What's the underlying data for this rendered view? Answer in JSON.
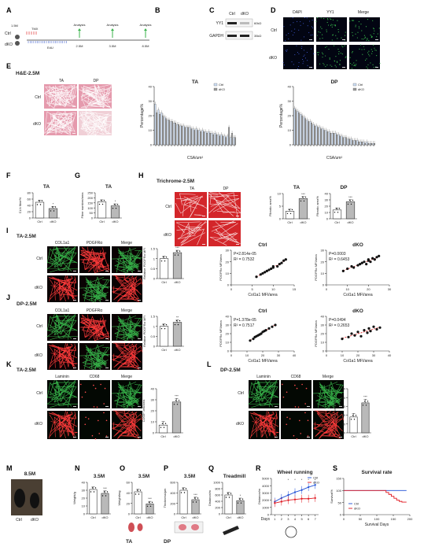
{
  "figure": {
    "panel_letters": [
      "A",
      "B",
      "C",
      "D",
      "E",
      "F",
      "G",
      "H",
      "I",
      "J",
      "K",
      "L",
      "M",
      "N",
      "O",
      "P",
      "Q",
      "R",
      "S"
    ],
    "colors": {
      "ctrl": "#1f4fd6",
      "dko": "#e0161e",
      "bar_ctrl": "#ffffff",
      "bar_dko": "#b9b9b9",
      "he_pink": "#e59aad",
      "trichrome_red": "#d3262a",
      "cd68_red": "#a31f23",
      "laminin_green": "#2aa83d",
      "green": "#37b34a",
      "dapi_blue": "#2b46c9",
      "black": "#111111"
    }
  },
  "panel_a": {
    "groups": [
      "Ctrl",
      "dKO"
    ],
    "age_label": "1.5M",
    "treatments": [
      "TMX",
      "EdU"
    ],
    "analyses": [
      "Analysis",
      "Analysis",
      "Analysis"
    ],
    "timepoints": [
      "2.5M",
      "3.5M",
      "8.5M"
    ]
  },
  "panel_c": {
    "columns": [
      "Ctrl",
      "dKO"
    ],
    "bands": [
      {
        "label": "YY1",
        "size": "60kD"
      },
      {
        "label": "GAPDH",
        "size": "35kD"
      }
    ]
  },
  "panel_d": {
    "columns": [
      "DAPI",
      "YY1",
      "Merge"
    ],
    "rows": [
      "Ctrl",
      "dKO"
    ]
  },
  "panel_e": {
    "title": "H&E-2.5M",
    "columns": [
      "TA",
      "DP"
    ],
    "rows": [
      "Ctrl",
      "dKO"
    ]
  },
  "panel_h": {
    "title": "Trichrome-2.5M",
    "columns": [
      "TA",
      "DP"
    ],
    "rows": [
      "Ctrl",
      "dKO"
    ]
  },
  "panel_i": {
    "title": "TA-2.5M",
    "columns": [
      "COL1a1",
      "PDGFRα",
      "Merge"
    ],
    "rows": [
      "Ctrl",
      "dKO"
    ]
  },
  "panel_j": {
    "title": "DP-2.5M",
    "columns": [
      "COL1a1",
      "PDGFRα",
      "Merge"
    ],
    "rows": [
      "Ctrl",
      "dKO"
    ]
  },
  "panel_k": {
    "title": "TA-2.5M",
    "columns": [
      "Laminin",
      "CD68",
      "Merge"
    ],
    "rows": [
      "Ctrl",
      "dKO"
    ]
  },
  "panel_l": {
    "title": "DP-2.5M",
    "columns": [
      "Laminin",
      "CD68",
      "Merge"
    ],
    "rows": [
      "Ctrl",
      "dKO"
    ]
  },
  "panel_m": {
    "title": "8.5M",
    "labels": [
      "Ctrl",
      "dKO"
    ]
  },
  "panel_o": {
    "image_label": "TA"
  },
  "panel_p": {
    "image_label": "DP"
  },
  "chart_data": [
    {
      "id": "B",
      "type": "bar",
      "categories": [
        "Ctrl",
        "dKO"
      ],
      "values": [
        1.0,
        0.05
      ],
      "ylabel": "YY1 expression fold",
      "ylim": [
        0,
        1.5
      ],
      "yticks": [
        0,
        0.5,
        1,
        1.5
      ],
      "sig": "***"
    },
    {
      "id": "E-TA",
      "type": "bar",
      "title": "TA",
      "xlabel": "CSA/um²",
      "ylabel": "Percentage%",
      "ylim": [
        0,
        40
      ],
      "yticks": [
        0,
        10,
        20,
        30,
        40
      ],
      "n_bins": 26,
      "series": [
        {
          "name": "Ctrl",
          "values": [
            28,
            24,
            22,
            19,
            17,
            16,
            15,
            14,
            13,
            13,
            12,
            12,
            11,
            11,
            10,
            10,
            9,
            9,
            8,
            8,
            7,
            7,
            6,
            6,
            5,
            5
          ]
        },
        {
          "name": "dKO",
          "values": [
            22,
            21,
            20,
            18,
            17,
            16,
            15,
            14,
            13,
            12,
            12,
            11,
            10,
            10,
            9,
            9,
            8,
            8,
            7,
            7,
            6,
            6,
            5,
            12,
            8,
            5
          ]
        }
      ],
      "legend": [
        "Ctrl",
        "dKO"
      ],
      "legend_position": "top-right"
    },
    {
      "id": "E-DP",
      "type": "bar",
      "title": "DP",
      "xlabel": "CSA/um²",
      "ylabel": "Percentage%",
      "ylim": [
        0,
        40
      ],
      "yticks": [
        0,
        10,
        20,
        30,
        40
      ],
      "n_bins": 26,
      "series": [
        {
          "name": "Ctrl",
          "values": [
            25,
            23,
            21,
            19,
            17,
            16,
            14,
            13,
            12,
            11,
            10,
            9,
            8,
            8,
            7,
            6,
            5,
            4,
            4,
            3,
            3,
            2,
            2,
            2,
            1,
            1
          ]
        },
        {
          "name": "dKO",
          "values": [
            24,
            22,
            20,
            18,
            16,
            15,
            13,
            12,
            11,
            10,
            9,
            8,
            8,
            7,
            6,
            5,
            5,
            4,
            3,
            3,
            2,
            2,
            1,
            1,
            1,
            1
          ]
        }
      ],
      "legend": [
        "Ctrl",
        "dKO"
      ],
      "legend_position": "top-right"
    },
    {
      "id": "F",
      "type": "bar",
      "title": "TA",
      "categories": [
        "Ctrl",
        "dKO"
      ],
      "values": [
        50,
        30
      ],
      "ylabel": "CLN fiber%",
      "ylim": [
        0,
        80
      ],
      "yticks": [
        0,
        20,
        40,
        60,
        80
      ],
      "sig": "*"
    },
    {
      "id": "G",
      "type": "bar",
      "title": "TA",
      "categories": [
        "Ctrl",
        "dKO"
      ],
      "values": [
        160,
        120
      ],
      "ylabel": "Fiber number/area",
      "ylim": [
        0,
        250
      ],
      "yticks": [
        0,
        50,
        100,
        150,
        200,
        250
      ],
      "sig": "*"
    },
    {
      "id": "H-TA",
      "type": "bar",
      "title": "TA",
      "categories": [
        "Ctrl",
        "dKO"
      ],
      "values": [
        3,
        8
      ],
      "ylabel": "Fibrotic area%",
      "ylim": [
        0,
        10
      ],
      "yticks": [
        0,
        5,
        10
      ],
      "sig": "***"
    },
    {
      "id": "H-DP",
      "type": "bar",
      "title": "DP",
      "categories": [
        "Ctrl",
        "dKO"
      ],
      "values": [
        14,
        27
      ],
      "ylabel": "Fibrotic area%",
      "ylim": [
        0,
        40
      ],
      "yticks": [
        0,
        10,
        20,
        30,
        40
      ],
      "sig": "***"
    },
    {
      "id": "I-bar",
      "type": "bar",
      "categories": [
        "Ctrl",
        "dKO"
      ],
      "values": [
        1.0,
        1.3
      ],
      "ylabel": "Relative PDGFRα MFI",
      "ylim": [
        0,
        1.5
      ],
      "yticks": [
        0,
        0.5,
        1,
        1.5
      ],
      "sig": "***"
    },
    {
      "id": "I-ctrl",
      "type": "scatter",
      "title": "Ctrl",
      "xlabel": "Col1a1 MFI/area",
      "ylabel": "PDGFRα MFI/area",
      "xlim": [
        0,
        15
      ],
      "xticks": [
        0,
        5,
        10,
        15
      ],
      "ylim": [
        0,
        30
      ],
      "yticks": [
        0,
        10,
        20,
        30
      ],
      "annotations": [
        "P=2.814e-05",
        "R² = 0.7532"
      ],
      "x": [
        6,
        7,
        7.5,
        8,
        8.5,
        9,
        9.5,
        10,
        10,
        11,
        11.5,
        12,
        12.5,
        13
      ],
      "y": [
        7,
        9,
        10,
        11,
        12,
        13,
        14,
        15,
        16,
        16,
        18,
        19,
        21,
        22
      ]
    },
    {
      "id": "I-dko",
      "type": "scatter",
      "title": "dKO",
      "xlabel": "Col1a1 MFI/area",
      "ylabel": "PDGFRα MFI/area",
      "xlim": [
        0,
        30
      ],
      "xticks": [
        0,
        10,
        20,
        30
      ],
      "ylim": [
        0,
        30
      ],
      "yticks": [
        0,
        10,
        20,
        30
      ],
      "annotations": [
        "P=0.0003",
        "R² = 0.6453"
      ],
      "x": [
        8,
        10,
        12,
        13,
        15,
        16,
        17,
        18,
        19,
        20,
        20,
        21,
        22,
        23,
        24,
        25
      ],
      "y": [
        12,
        14,
        16,
        15,
        17,
        18,
        19,
        20,
        18,
        21,
        22,
        20,
        23,
        22,
        24,
        25
      ]
    },
    {
      "id": "J-bar",
      "type": "bar",
      "categories": [
        "Ctrl",
        "dKO"
      ],
      "values": [
        1.0,
        1.2
      ],
      "ylabel": "Relative PDGFRα MFI",
      "ylim": [
        0,
        1.5
      ],
      "yticks": [
        0,
        0.5,
        1,
        1.5
      ],
      "sig": "**"
    },
    {
      "id": "J-ctrl",
      "type": "scatter",
      "title": "Ctrl",
      "xlabel": "Col1a1 MFI/area",
      "ylabel": "PDGFRα MFI/area",
      "xlim": [
        0,
        40
      ],
      "xticks": [
        0,
        10,
        20,
        30,
        40
      ],
      "ylim": [
        0,
        40
      ],
      "yticks": [
        0,
        10,
        20,
        30,
        40
      ],
      "annotations": [
        "P=1.378e-05",
        "R² = 0.7517"
      ],
      "x": [
        12,
        14,
        15,
        16,
        17,
        18,
        19,
        20,
        21,
        22,
        24,
        26,
        28
      ],
      "y": [
        12,
        14,
        16,
        17,
        18,
        19,
        20,
        22,
        23,
        24,
        26,
        28,
        30
      ]
    },
    {
      "id": "J-dko",
      "type": "scatter",
      "title": "dKO",
      "xlabel": "Col1a1 MFI/area",
      "ylabel": "PDGFRα MFI/area",
      "xlim": [
        0,
        40
      ],
      "xticks": [
        0,
        10,
        20,
        30,
        40
      ],
      "ylim": [
        0,
        40
      ],
      "yticks": [
        0,
        10,
        20,
        30,
        40
      ],
      "annotations": [
        "P=0.0494",
        "R² = 0.2653"
      ],
      "x": [
        10,
        14,
        16,
        18,
        20,
        22,
        24,
        26,
        27,
        28,
        30,
        32,
        34
      ],
      "y": [
        14,
        16,
        20,
        18,
        22,
        17,
        24,
        21,
        26,
        23,
        28,
        25,
        27
      ]
    },
    {
      "id": "K",
      "type": "bar",
      "categories": [
        "Ctrl",
        "dKO"
      ],
      "values": [
        7,
        28
      ],
      "ylabel": "CD68+ cell/area",
      "ylim": [
        0,
        40
      ],
      "yticks": [
        0,
        10,
        20,
        30,
        40
      ],
      "sig": "***"
    },
    {
      "id": "L",
      "type": "bar",
      "categories": [
        "Ctrl",
        "dKO"
      ],
      "values": [
        18,
        34
      ],
      "ylabel": "CD68+ cell/area",
      "ylim": [
        0,
        50
      ],
      "yticks": [
        0,
        10,
        20,
        30,
        40,
        50
      ],
      "sig": "***"
    },
    {
      "id": "N",
      "type": "bar",
      "title": "3.5M",
      "categories": [
        "Ctrl",
        "dKO"
      ],
      "values": [
        31,
        26
      ],
      "ylabel": "Weight/g",
      "ylim": [
        0,
        40
      ],
      "yticks": [
        0,
        10,
        20,
        30,
        40
      ],
      "sig": "***"
    },
    {
      "id": "O",
      "type": "bar",
      "title": "3.5M",
      "categories": [
        "Ctrl",
        "dKO"
      ],
      "values": [
        42,
        19
      ],
      "ylabel": "Weight/mg",
      "ylim": [
        0,
        60
      ],
      "yticks": [
        0,
        20,
        40,
        60
      ],
      "sig": "***"
    },
    {
      "id": "P",
      "type": "bar",
      "title": "3.5M",
      "categories": [
        "Ctrl",
        "dKO"
      ],
      "values": [
        450,
        270
      ],
      "ylabel": "Thickness/μm",
      "ylim": [
        0,
        600
      ],
      "yticks": [
        0,
        200,
        400,
        600
      ],
      "sig": "***"
    },
    {
      "id": "Q",
      "type": "bar",
      "title": "Treadmill",
      "categories": [
        "Ctrl",
        "dKO"
      ],
      "values": [
        600,
        420
      ],
      "ylabel": "Distance/m",
      "ylim": [
        0,
        1000
      ],
      "yticks": [
        0,
        200,
        400,
        600,
        800,
        1000
      ],
      "sig": "*"
    },
    {
      "id": "R",
      "type": "line",
      "title": "Wheel running",
      "xlabel": "Days",
      "ylabel": "Distance/m",
      "x": [
        1,
        2,
        3,
        4,
        5,
        6,
        7
      ],
      "ylim": [
        0,
        5000
      ],
      "yticks": [
        0,
        1000,
        2000,
        3000,
        4000,
        5000
      ],
      "series": [
        {
          "name": "Ctrl",
          "values": [
            1800,
            2300,
            2700,
            3100,
            3400,
            3800,
            4100
          ]
        },
        {
          "name": "dKO",
          "values": [
            1600,
            1800,
            2000,
            2100,
            2200,
            2200,
            2300
          ]
        }
      ],
      "legend": [
        "Ctrl",
        "dKO"
      ],
      "legend_position": "top-right",
      "sig": [
        "*",
        "*",
        "*",
        "*",
        "*"
      ]
    },
    {
      "id": "S",
      "type": "line",
      "title": "Survival rate",
      "xlabel": "Survival Days",
      "ylabel": "Survival%",
      "xlim": [
        0,
        200
      ],
      "xticks": [
        0,
        50,
        100,
        150,
        200
      ],
      "ylim": [
        0,
        150
      ],
      "yticks": [
        0,
        50,
        100,
        150
      ],
      "series": [
        {
          "name": "Ctrl",
          "x": [
            0,
            190
          ],
          "values": [
            100,
            100
          ]
        },
        {
          "name": "dKO",
          "x": [
            0,
            120,
            128,
            136,
            144,
            152,
            160,
            168,
            176,
            190
          ],
          "values": [
            100,
            100,
            92,
            84,
            76,
            68,
            60,
            55,
            52,
            52
          ]
        }
      ],
      "legend": [
        "Ctrl",
        "dKO"
      ],
      "legend_position": "bottom-left"
    }
  ]
}
